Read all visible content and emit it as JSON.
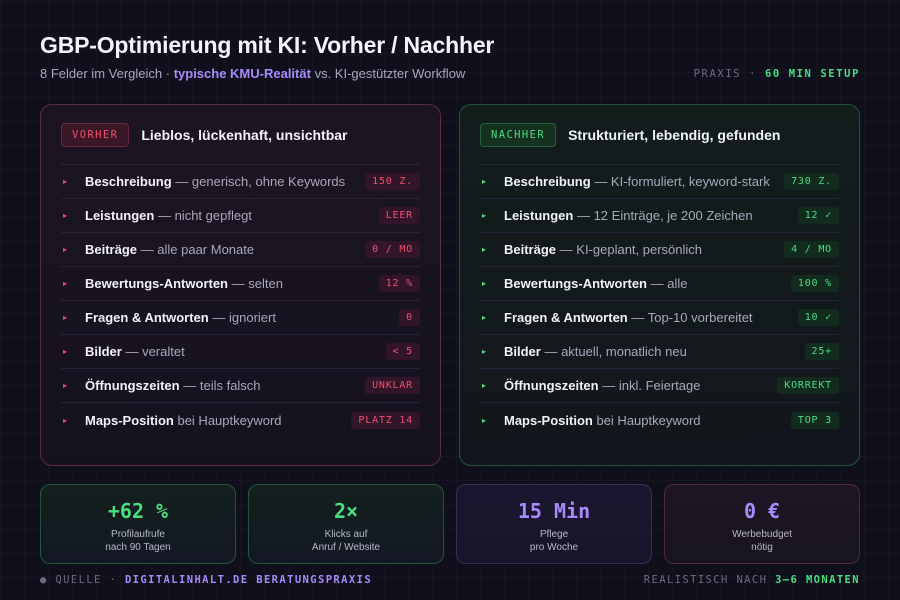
{
  "header": {
    "title": "GBP-Optimierung mit KI: Vorher / Nachher",
    "subtitle_pre": "8 Felder im Vergleich ·",
    "subtitle_highlight": "typische KMU-Realität",
    "subtitle_post": "vs. KI-gestützter Workflow",
    "meta_label": "PRAXIS ·",
    "meta_value": "60 MIN SETUP"
  },
  "colors": {
    "background": "#10101c",
    "before_accent": "#f0506e",
    "after_accent": "#4ade80",
    "highlight": "#a78bfa"
  },
  "before": {
    "tag": "VORHER",
    "title": "Lieblos, lückenhaft, unsichtbar",
    "rows": [
      {
        "field": "Beschreibung",
        "note": "— generisch, ohne Keywords",
        "badge": "150 Z."
      },
      {
        "field": "Leistungen",
        "note": "— nicht gepflegt",
        "badge": "LEER"
      },
      {
        "field": "Beiträge",
        "note": "— alle paar Monate",
        "badge": "0 / MO"
      },
      {
        "field": "Bewertungs-Antworten",
        "note": "— selten",
        "badge": "12 %"
      },
      {
        "field": "Fragen & Antworten",
        "note": "— ignoriert",
        "badge": "0"
      },
      {
        "field": "Bilder",
        "note": "— veraltet",
        "badge": "< 5"
      },
      {
        "field": "Öffnungszeiten",
        "note": "— teils falsch",
        "badge": "UNKLAR"
      },
      {
        "field": "Maps-Position",
        "note": "bei Hauptkeyword",
        "badge": "PLATZ 14"
      }
    ]
  },
  "after": {
    "tag": "NACHHER",
    "title": "Strukturiert, lebendig, gefunden",
    "rows": [
      {
        "field": "Beschreibung",
        "note": "— KI-formuliert, keyword-stark",
        "badge": "730 Z."
      },
      {
        "field": "Leistungen",
        "note": "— 12 Einträge, je 200 Zeichen",
        "badge": "12 ✓"
      },
      {
        "field": "Beiträge",
        "note": "— KI-geplant, persönlich",
        "badge": "4 / MO"
      },
      {
        "field": "Bewertungs-Antworten",
        "note": "— alle",
        "badge": "100 %"
      },
      {
        "field": "Fragen & Antworten",
        "note": "— Top-10 vorbereitet",
        "badge": "10 ✓"
      },
      {
        "field": "Bilder",
        "note": "— aktuell, monatlich neu",
        "badge": "25+"
      },
      {
        "field": "Öffnungszeiten",
        "note": "— inkl. Feiertage",
        "badge": "KORREKT"
      },
      {
        "field": "Maps-Position",
        "note": "bei Hauptkeyword",
        "badge": "TOP 3"
      }
    ]
  },
  "stats": [
    {
      "value": "+62 %",
      "caption": "Profilaufrufe\nnach 90 Tagen"
    },
    {
      "value": "2×",
      "caption": "Klicks auf\nAnruf / Website"
    },
    {
      "value": "15 Min",
      "caption": "Pflege\npro Woche"
    },
    {
      "value": "0 €",
      "caption": "Werbebudget\nnötig"
    }
  ],
  "footer": {
    "source_label": "● QUELLE ·",
    "source_value": "DIGITALINHALT.DE BERATUNGSPRAXIS",
    "timing_label": "REALISTISCH NACH",
    "timing_value": "3–6 MONATEN"
  }
}
